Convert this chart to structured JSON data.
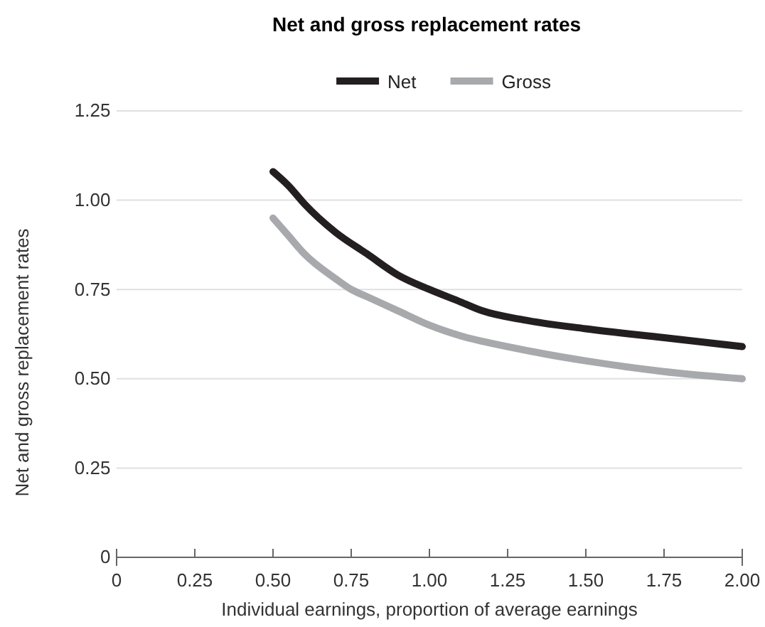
{
  "chart_data": {
    "type": "line",
    "title": "Net and gross replacement rates",
    "xlabel": "Individual earnings, proportion of average earnings",
    "ylabel": "Net and gross replacement rates",
    "xlim": [
      0,
      2
    ],
    "ylim": [
      0,
      1.25
    ],
    "xticks": [
      0,
      {
        "value": 0.25,
        "label": "0.25"
      },
      {
        "value": 0.5,
        "label": "0.50"
      },
      {
        "value": 0.75,
        "label": "0.75"
      },
      {
        "value": 1,
        "label": "1.00"
      },
      {
        "value": 1.25,
        "label": "1.25"
      },
      {
        "value": 1.5,
        "label": "1.50"
      },
      {
        "value": 1.75,
        "label": "1.75"
      },
      {
        "value": 2,
        "label": "2.00"
      }
    ],
    "yticks": [
      0,
      {
        "value": 0.25,
        "label": "0.25"
      },
      {
        "value": 0.5,
        "label": "0.50"
      },
      {
        "value": 0.75,
        "label": "0.75"
      },
      {
        "value": 1,
        "label": "1.00"
      },
      {
        "value": 1.25,
        "label": "1.25"
      }
    ],
    "grid": "y",
    "legend": "top",
    "marker": "none",
    "line_style": "solid",
    "series": [
      {
        "name": "Net",
        "color": "#231f20",
        "x": [
          0.5,
          0.55,
          0.6,
          0.7,
          0.8,
          0.9,
          1.0,
          1.1,
          1.17,
          1.3,
          1.5,
          1.75,
          2.0
        ],
        "values": [
          1.08,
          1.04,
          0.99,
          0.91,
          0.85,
          0.79,
          0.75,
          0.715,
          0.69,
          0.665,
          0.64,
          0.615,
          0.59
        ]
      },
      {
        "name": "Gross",
        "color": "#a7a9ac",
        "x": [
          0.5,
          0.55,
          0.6,
          0.7,
          0.75,
          0.8,
          0.9,
          1.0,
          1.1,
          1.25,
          1.5,
          1.75,
          2.0
        ],
        "values": [
          0.95,
          0.9,
          0.85,
          0.78,
          0.75,
          0.73,
          0.69,
          0.65,
          0.62,
          0.59,
          0.55,
          0.52,
          0.5
        ]
      }
    ]
  }
}
